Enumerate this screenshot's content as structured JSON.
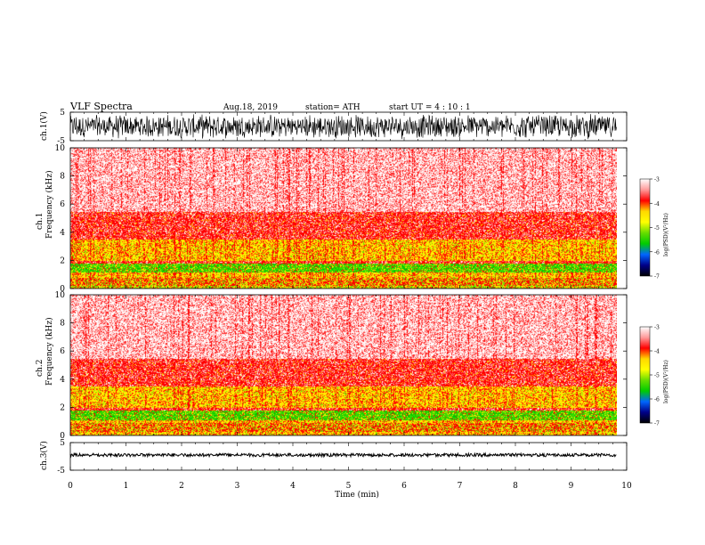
{
  "header": {
    "title": "VLF  Spectra",
    "date": "Aug.18, 2019",
    "station": "station= ATH",
    "start_ut": "start  UT  =    4   : 10 : 1"
  },
  "axes": {
    "ch1_label": "ch.1(V)",
    "ch3_label": "ch.3(V)",
    "spec1_label_line1": "ch.1",
    "spec1_label_line2": "Frequency  (kHz)",
    "spec2_label_line1": "ch.2",
    "spec2_label_line2": "Frequency  (kHz)",
    "colorbar_label": "log(PSD)(V²/Hz)",
    "time_label": "Time  (min)"
  },
  "colors": {
    "waveform": "#000000",
    "background": "#ffffff",
    "colormap": [
      "#ffffff",
      "#ff9a9a",
      "#ff0000",
      "#ffd800",
      "#ffff00",
      "#66dd00",
      "#00cc00",
      "#0066ff",
      "#000088",
      "#000000"
    ]
  },
  "chart_data": [
    {
      "type": "line",
      "name": "ch1-waveform",
      "ylabel": "ch.1(V)",
      "ylim": [
        -5,
        5
      ],
      "yticks": [
        "5",
        "-5"
      ],
      "xlim": [
        0,
        10
      ],
      "data_end_min": 9.82,
      "amplitude_V": 4.5
    },
    {
      "type": "heatmap",
      "name": "ch1-spectrogram",
      "ylabel": "Frequency  (kHz)",
      "ylim": [
        0,
        10
      ],
      "yticks": [
        "0",
        "2",
        "4",
        "6",
        "8",
        "10"
      ],
      "xlim": [
        0,
        10
      ],
      "data_end_min": 9.82,
      "clim": [
        -7,
        -3
      ],
      "bands_khz": [
        {
          "from": 0.0,
          "to": 0.25,
          "level": "yellow-green"
        },
        {
          "from": 0.25,
          "to": 0.8,
          "level": "red-yellow"
        },
        {
          "from": 0.8,
          "to": 1.2,
          "level": "yellow"
        },
        {
          "from": 1.2,
          "to": 1.8,
          "level": "green"
        },
        {
          "from": 1.8,
          "to": 2.0,
          "level": "red"
        },
        {
          "from": 2.0,
          "to": 3.5,
          "level": "yellow"
        },
        {
          "from": 3.5,
          "to": 5.5,
          "level": "red"
        },
        {
          "from": 5.5,
          "to": 10.0,
          "level": "light-red"
        }
      ]
    },
    {
      "type": "heatmap",
      "name": "ch2-spectrogram",
      "ylabel": "Frequency  (kHz)",
      "ylim": [
        0,
        10
      ],
      "yticks": [
        "0",
        "2",
        "4",
        "6",
        "8",
        "10"
      ],
      "xlim": [
        0,
        10
      ],
      "data_end_min": 9.82,
      "clim": [
        -7,
        -3
      ],
      "bands_khz": [
        {
          "from": 0.0,
          "to": 0.3,
          "level": "yellow"
        },
        {
          "from": 0.3,
          "to": 0.9,
          "level": "red-yellow"
        },
        {
          "from": 0.9,
          "to": 1.1,
          "level": "yellow"
        },
        {
          "from": 1.1,
          "to": 1.8,
          "level": "green"
        },
        {
          "from": 1.8,
          "to": 2.0,
          "level": "red"
        },
        {
          "from": 2.0,
          "to": 3.5,
          "level": "yellow"
        },
        {
          "from": 3.5,
          "to": 5.5,
          "level": "red"
        },
        {
          "from": 5.5,
          "to": 10.0,
          "level": "light-red"
        }
      ]
    },
    {
      "type": "line",
      "name": "ch3-waveform",
      "ylabel": "ch.3(V)",
      "ylim": [
        -5,
        5
      ],
      "yticks": [
        "5",
        "-5"
      ],
      "xlim": [
        0,
        10
      ],
      "data_end_min": 9.82,
      "level_V": 0.5
    },
    {
      "type": "colorbar",
      "ticks": [
        "-3",
        "-4",
        "-5",
        "-6",
        "-7"
      ],
      "range": [
        -7,
        -3
      ]
    },
    {
      "type": "axis",
      "xlabel": "Time  (min)",
      "xticks": [
        "0",
        "1",
        "2",
        "3",
        "4",
        "5",
        "6",
        "7",
        "8",
        "9",
        "10"
      ],
      "xlim": [
        0,
        10
      ]
    }
  ]
}
